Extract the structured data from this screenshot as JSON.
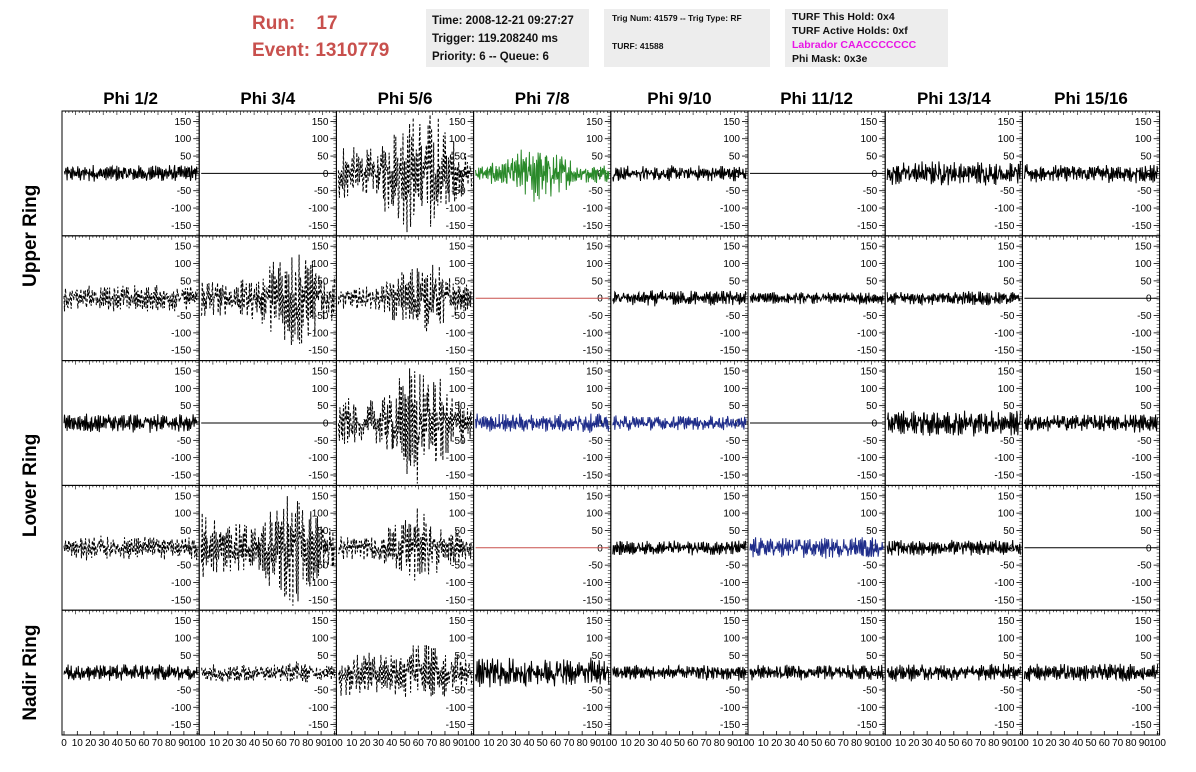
{
  "header": {
    "run_label": "Run:",
    "run_value": "17",
    "event_label": "Event:",
    "event_value": "1310779"
  },
  "info_time": {
    "time": "Time: 2008-12-21 09:27:27",
    "trigger": "Trigger: 119.208240 ms",
    "priority": "Priority: 6 -- Queue: 6"
  },
  "info_trig": {
    "trig": "Trig Num: 41579 -- Trig Type: RF",
    "turf": "TURF: 41588"
  },
  "info_turf": {
    "hold": "TURF This Hold: 0x4",
    "active": "TURF Active Holds: 0xf",
    "labrador": "Labrador CAACCCCCCC",
    "phimask": "Phi Mask: 0x3e"
  },
  "colors": {
    "header_red": "#c8504d",
    "trace_black": "#000000",
    "trace_green": "#2a8a2a",
    "trace_blue": "#1f2d8a",
    "flat_red": "#c8504d",
    "labrador_magenta": "#e815e6",
    "info_bg": "#ededed"
  },
  "columns": [
    "Phi 1/2",
    "Phi 3/4",
    "Phi 5/6",
    "Phi 7/8",
    "Phi 9/10",
    "Phi 11/12",
    "Phi 13/14",
    "Phi 15/16"
  ],
  "ring_labels": [
    "Upper Ring",
    "Lower Ring",
    "Nadir Ring"
  ],
  "chart_data": {
    "type": "line",
    "ylim": [
      -180,
      180
    ],
    "yticks": [
      "150",
      "100",
      "50",
      "0",
      "-50",
      "-100",
      "-150"
    ],
    "xlim": [
      0,
      100
    ],
    "xticks": [
      "0",
      "10",
      "20",
      "30",
      "40",
      "50",
      "60",
      "70",
      "80",
      "90",
      "100"
    ],
    "grid": false,
    "rows": [
      [
        {
          "style": "solid",
          "color": "black",
          "amp": 20
        },
        {
          "style": "flat",
          "color": "black",
          "amp": 0
        },
        {
          "style": "dashed",
          "color": "black",
          "amp": 160,
          "env": [
            [
              0,
              0.4
            ],
            [
              25,
              0.35
            ],
            [
              45,
              0.75
            ],
            [
              60,
              1.0
            ],
            [
              75,
              0.9
            ],
            [
              90,
              0.35
            ],
            [
              100,
              0.3
            ]
          ]
        },
        {
          "style": "solid",
          "color": "green",
          "amp": 75,
          "env": [
            [
              0,
              0.2
            ],
            [
              20,
              0.4
            ],
            [
              45,
              1.0
            ],
            [
              60,
              0.7
            ],
            [
              80,
              0.35
            ],
            [
              100,
              0.25
            ]
          ]
        },
        {
          "style": "solid",
          "color": "black",
          "amp": 18
        },
        {
          "style": "flat",
          "color": "black",
          "amp": 0
        },
        {
          "style": "solid",
          "color": "black",
          "amp": 28
        },
        {
          "style": "solid",
          "color": "black",
          "amp": 22
        }
      ],
      [
        {
          "style": "dashed",
          "color": "black",
          "amp": 30
        },
        {
          "style": "dashed",
          "color": "black",
          "amp": 130,
          "env": [
            [
              0,
              0.4
            ],
            [
              20,
              0.3
            ],
            [
              40,
              0.5
            ],
            [
              60,
              0.8
            ],
            [
              72,
              1.0
            ],
            [
              90,
              0.5
            ],
            [
              100,
              0.4
            ]
          ]
        },
        {
          "style": "dashed",
          "color": "black",
          "amp": 85,
          "env": [
            [
              0,
              0.3
            ],
            [
              25,
              0.35
            ],
            [
              50,
              0.8
            ],
            [
              70,
              1.0
            ],
            [
              90,
              0.5
            ],
            [
              100,
              0.3
            ]
          ]
        },
        {
          "style": "flat",
          "color": "red",
          "amp": 0
        },
        {
          "style": "solid",
          "color": "black",
          "amp": 18
        },
        {
          "style": "solid",
          "color": "black",
          "amp": 14
        },
        {
          "style": "solid",
          "color": "black",
          "amp": 17
        },
        {
          "style": "flat",
          "color": "black",
          "amp": 0
        }
      ],
      [
        {
          "style": "solid",
          "color": "black",
          "amp": 22
        },
        {
          "style": "flat",
          "color": "black",
          "amp": 0
        },
        {
          "style": "dashed",
          "color": "black",
          "amp": 145,
          "env": [
            [
              0,
              0.45
            ],
            [
              20,
              0.3
            ],
            [
              40,
              0.6
            ],
            [
              55,
              1.0
            ],
            [
              70,
              0.95
            ],
            [
              88,
              0.4
            ],
            [
              100,
              0.3
            ]
          ]
        },
        {
          "style": "solid",
          "color": "blue",
          "amp": 22
        },
        {
          "style": "solid",
          "color": "blue",
          "amp": 18
        },
        {
          "style": "flat",
          "color": "black",
          "amp": 0
        },
        {
          "style": "solid",
          "color": "black",
          "amp": 30
        },
        {
          "style": "solid",
          "color": "black",
          "amp": 22
        }
      ],
      [
        {
          "style": "dashed",
          "color": "black",
          "amp": 28
        },
        {
          "style": "dashed",
          "color": "black",
          "amp": 140,
          "env": [
            [
              0,
              0.65
            ],
            [
              15,
              0.5
            ],
            [
              35,
              0.4
            ],
            [
              55,
              0.7
            ],
            [
              68,
              1.0
            ],
            [
              85,
              0.6
            ],
            [
              100,
              0.5
            ]
          ]
        },
        {
          "style": "dashed",
          "color": "black",
          "amp": 90,
          "env": [
            [
              0,
              0.35
            ],
            [
              25,
              0.3
            ],
            [
              45,
              0.7
            ],
            [
              60,
              1.0
            ],
            [
              80,
              0.6
            ],
            [
              100,
              0.3
            ]
          ]
        },
        {
          "style": "flat",
          "color": "red",
          "amp": 0
        },
        {
          "style": "solid",
          "color": "black",
          "amp": 17
        },
        {
          "style": "solid",
          "color": "blue",
          "amp": 25
        },
        {
          "style": "solid",
          "color": "black",
          "amp": 18
        },
        {
          "style": "flat",
          "color": "black",
          "amp": 0
        }
      ],
      [
        {
          "style": "solid",
          "color": "black",
          "amp": 20
        },
        {
          "style": "dashed",
          "color": "black",
          "amp": 35,
          "env": [
            [
              0,
              0.5
            ],
            [
              30,
              0.7
            ],
            [
              50,
              0.5
            ],
            [
              70,
              0.8
            ],
            [
              100,
              0.5
            ]
          ]
        },
        {
          "style": "dashed",
          "color": "black",
          "amp": 80,
          "env": [
            [
              0,
              0.9
            ],
            [
              20,
              0.55
            ],
            [
              40,
              0.6
            ],
            [
              60,
              1.0
            ],
            [
              80,
              0.7
            ],
            [
              100,
              0.4
            ]
          ]
        },
        {
          "style": "solid",
          "color": "black",
          "amp": 35
        },
        {
          "style": "solid",
          "color": "black",
          "amp": 18
        },
        {
          "style": "solid",
          "color": "black",
          "amp": 18
        },
        {
          "style": "solid",
          "color": "black",
          "amp": 20
        },
        {
          "style": "solid",
          "color": "black",
          "amp": 20
        }
      ]
    ]
  }
}
